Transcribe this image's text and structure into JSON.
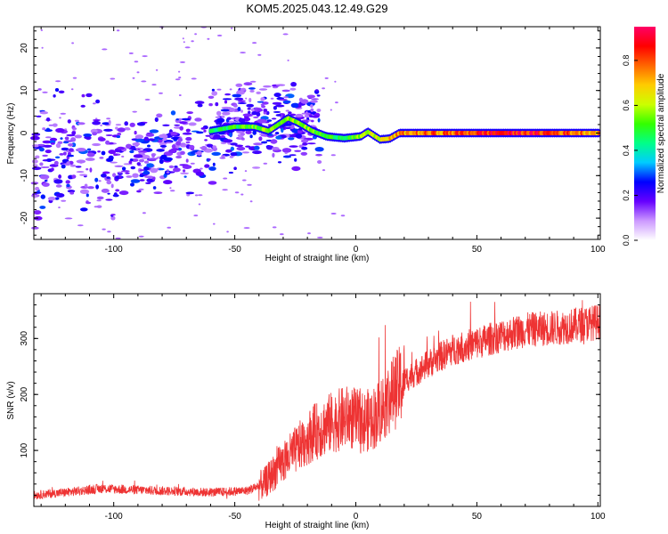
{
  "figure": {
    "title": "KOM5.2025.043.12.49.G29"
  },
  "chart_data": [
    {
      "type": "heatmap",
      "xlabel": "Height of straight line (km)",
      "ylabel": "Frequency (Hz)",
      "xlim": [
        -133,
        101
      ],
      "ylim": [
        -25,
        25
      ],
      "xticks": [
        -100,
        -50,
        0,
        50,
        100
      ],
      "yticks": [
        -20,
        -10,
        0,
        10,
        20
      ],
      "xticklabels": [
        "-100",
        "-50",
        "0",
        "50",
        "100"
      ],
      "yticklabels": [
        "-20",
        "-10",
        "0",
        "10",
        "20"
      ],
      "colorbar": {
        "label": "Normalized spectral amplitude",
        "range": [
          0,
          0.95
        ],
        "ticks": [
          0.0,
          0.2,
          0.4,
          0.6,
          0.8
        ],
        "ticklabels": [
          "0.0",
          "0.2",
          "0.4",
          "0.6",
          "0.8"
        ],
        "colormap": [
          "#ffffff",
          "#cc99ff",
          "#6600ff",
          "#0000ff",
          "#00ccff",
          "#00ff88",
          "#33ff00",
          "#ccff00",
          "#ffcc00",
          "#ff6600",
          "#ff0000",
          "#ff0066"
        ]
      },
      "ridge": [
        {
          "x": -60,
          "y": 0.5,
          "a": 0.45
        },
        {
          "x": -50,
          "y": 1.5,
          "a": 0.5
        },
        {
          "x": -42,
          "y": 1.5,
          "a": 0.55
        },
        {
          "x": -36,
          "y": 0.5,
          "a": 0.6
        },
        {
          "x": -32,
          "y": 2.0,
          "a": 0.6
        },
        {
          "x": -28,
          "y": 3.5,
          "a": 0.55
        },
        {
          "x": -24,
          "y": 2.5,
          "a": 0.6
        },
        {
          "x": -18,
          "y": 0.5,
          "a": 0.55
        },
        {
          "x": -12,
          "y": -0.8,
          "a": 0.5
        },
        {
          "x": -5,
          "y": -1.2,
          "a": 0.5
        },
        {
          "x": 2,
          "y": -0.8,
          "a": 0.55
        },
        {
          "x": 5,
          "y": 0.3,
          "a": 0.6
        },
        {
          "x": 10,
          "y": -1.5,
          "a": 0.65
        },
        {
          "x": 14,
          "y": -1.3,
          "a": 0.7
        },
        {
          "x": 18,
          "y": 0.0,
          "a": 0.75
        },
        {
          "x": 40,
          "y": 0.0,
          "a": 0.8
        },
        {
          "x": 60,
          "y": 0.0,
          "a": 0.9
        },
        {
          "x": 80,
          "y": 0.0,
          "a": 0.85
        },
        {
          "x": 101,
          "y": 0.0,
          "a": 0.75
        }
      ],
      "scatter_band": [
        {
          "x": -130,
          "y": -7
        },
        {
          "x": -110,
          "y": -6
        },
        {
          "x": -90,
          "y": -5
        },
        {
          "x": -70,
          "y": -3
        },
        {
          "x": -55,
          "y": 0
        },
        {
          "x": -40,
          "y": 3
        }
      ]
    },
    {
      "type": "line",
      "xlabel": "Height of straight line (km)",
      "ylabel": "SNR (v/v)",
      "xlim": [
        -133,
        101
      ],
      "ylim": [
        0,
        380
      ],
      "xticks": [
        -100,
        -50,
        0,
        50,
        100
      ],
      "yticks": [
        100,
        200,
        300
      ],
      "xticklabels": [
        "-100",
        "-50",
        "0",
        "50",
        "100"
      ],
      "yticklabels": [
        "100",
        "200",
        "300"
      ],
      "color": "#ee3333",
      "trend": [
        {
          "x": -133,
          "y": 20
        },
        {
          "x": -120,
          "y": 25
        },
        {
          "x": -105,
          "y": 32
        },
        {
          "x": -95,
          "y": 30
        },
        {
          "x": -80,
          "y": 28
        },
        {
          "x": -60,
          "y": 25
        },
        {
          "x": -45,
          "y": 28
        },
        {
          "x": -38,
          "y": 40
        },
        {
          "x": -32,
          "y": 70
        },
        {
          "x": -25,
          "y": 100
        },
        {
          "x": -18,
          "y": 130
        },
        {
          "x": -10,
          "y": 150
        },
        {
          "x": -3,
          "y": 160
        },
        {
          "x": 3,
          "y": 150
        },
        {
          "x": 8,
          "y": 160
        },
        {
          "x": 14,
          "y": 195
        },
        {
          "x": 20,
          "y": 225
        },
        {
          "x": 30,
          "y": 255
        },
        {
          "x": 40,
          "y": 280
        },
        {
          "x": 50,
          "y": 292
        },
        {
          "x": 60,
          "y": 305
        },
        {
          "x": 70,
          "y": 315
        },
        {
          "x": 85,
          "y": 320
        },
        {
          "x": 101,
          "y": 330
        }
      ]
    }
  ]
}
